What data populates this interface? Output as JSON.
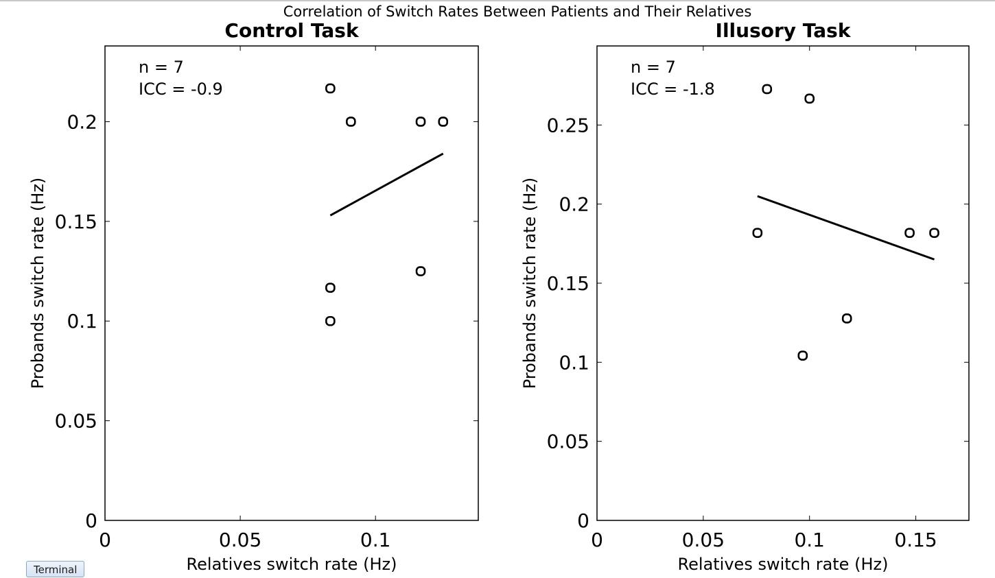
{
  "figure": {
    "suptitle": "Correlation of Switch Rates Between Patients and Their Relatives"
  },
  "terminal": {
    "label": "Terminal"
  },
  "chart_data": [
    {
      "type": "scatter",
      "title": "Control Task",
      "xlabel": "Relatives switch rate (Hz)",
      "ylabel": "Probands switch rate (Hz)",
      "xlim": [
        0,
        0.138
      ],
      "ylim": [
        0,
        0.238
      ],
      "xticks": [
        0,
        0.05,
        0.1
      ],
      "xticklabels": [
        "0",
        "0.05",
        "0.1"
      ],
      "yticks": [
        0,
        0.05,
        0.1,
        0.15,
        0.2
      ],
      "yticklabels": [
        "0",
        "0.05",
        "0.1",
        "0.15",
        "0.2"
      ],
      "annotation": [
        "n = 7",
        "ICC = -0.9"
      ],
      "points": [
        {
          "x": 0.0833,
          "y": 0.2167
        },
        {
          "x": 0.0909,
          "y": 0.2
        },
        {
          "x": 0.1167,
          "y": 0.2
        },
        {
          "x": 0.125,
          "y": 0.2
        },
        {
          "x": 0.1167,
          "y": 0.125
        },
        {
          "x": 0.0833,
          "y": 0.1167
        },
        {
          "x": 0.0833,
          "y": 0.1
        }
      ],
      "fit_line": {
        "x": [
          0.0833,
          0.125
        ],
        "y": [
          0.153,
          0.184
        ]
      },
      "grid": false,
      "colors": {
        "marker": "#000000",
        "line": "#000000"
      }
    },
    {
      "type": "scatter",
      "title": "Illusory Task",
      "xlabel": "Relatives switch rate (Hz)",
      "ylabel": "Probands switch rate (Hz)",
      "xlim": [
        0,
        0.175
      ],
      "ylim": [
        0,
        0.3
      ],
      "xticks": [
        0,
        0.05,
        0.1,
        0.15
      ],
      "xticklabels": [
        "0",
        "0.05",
        "0.1",
        "0.15"
      ],
      "yticks": [
        0,
        0.05,
        0.1,
        0.15,
        0.2,
        0.25
      ],
      "yticklabels": [
        "0",
        "0.05",
        "0.1",
        "0.15",
        "0.2",
        "0.25"
      ],
      "annotation": [
        "n = 7",
        "ICC = -1.8"
      ],
      "points": [
        {
          "x": 0.08,
          "y": 0.2727
        },
        {
          "x": 0.1,
          "y": 0.2667
        },
        {
          "x": 0.0755,
          "y": 0.1818
        },
        {
          "x": 0.1471,
          "y": 0.1818
        },
        {
          "x": 0.1587,
          "y": 0.1818
        },
        {
          "x": 0.1176,
          "y": 0.1277
        },
        {
          "x": 0.0968,
          "y": 0.1042
        }
      ],
      "fit_line": {
        "x": [
          0.0755,
          0.1587
        ],
        "y": [
          0.205,
          0.165
        ]
      },
      "grid": false,
      "colors": {
        "marker": "#000000",
        "line": "#000000"
      }
    }
  ]
}
